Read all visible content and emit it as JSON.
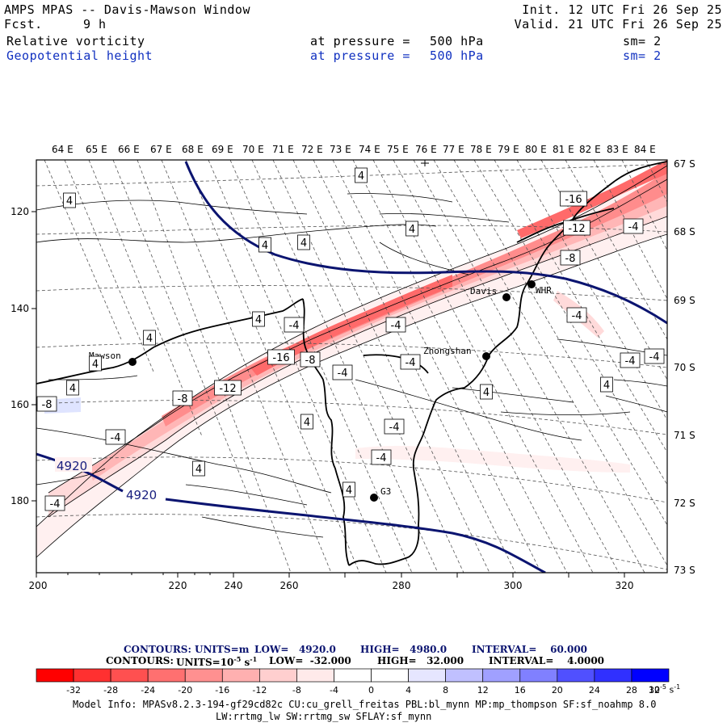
{
  "header": {
    "model_line": "AMPS MPAS -- Davis-Mawson Window",
    "forecast_label": "Fcst.",
    "forecast_value": "9 h",
    "init_line": "Init. 12 UTC Fri 26 Sep 25",
    "valid_line": "Valid. 21 UTC Fri 26 Sep 25",
    "fields": [
      {
        "name": "Relative vorticity",
        "level_text": "at pressure =",
        "level_value": "500 hPa",
        "smooth": "sm= 2",
        "color": "#000000"
      },
      {
        "name": "Geopotential height",
        "level_text": "at pressure =",
        "level_value": "500 hPa",
        "smooth": "sm= 2",
        "color": "#1030c0"
      }
    ]
  },
  "map": {
    "top_lon_labels": [
      "64 E",
      "65 E",
      "66 E",
      "67 E",
      "68 E",
      "69 E",
      "70 E",
      "71 E",
      "72 E",
      "73 E",
      "74 E",
      "75 E",
      "76 E",
      "77 E",
      "78 E",
      "79 E",
      "80 E",
      "81 E",
      "82 E",
      "83 E",
      "84 E"
    ],
    "right_lat_labels": [
      "67 S",
      "68 S",
      "69 S",
      "70 S",
      "71 S",
      "72 S",
      "73 S"
    ],
    "x_ticks": [
      "200",
      "220",
      "240",
      "260",
      "280",
      "300",
      "320"
    ],
    "y_ticks": [
      "120",
      "140",
      "160",
      "180"
    ],
    "stations": [
      "Mawson",
      "Davis",
      "WHR",
      "Zhongshan",
      "G3"
    ],
    "vorticity_labels": [
      "4",
      "4",
      "4",
      "4",
      "4",
      "4",
      "4",
      "4",
      "4",
      "4",
      "4",
      "4",
      "4",
      "4",
      "-4",
      "-4",
      "-4",
      "-4",
      "-4",
      "-4",
      "-4",
      "-4",
      "-4",
      "-4",
      "-4",
      "-4",
      "-8",
      "-8",
      "-8",
      "-8",
      "-8",
      "-12",
      "-12",
      "-16",
      "-16"
    ],
    "height_labels": [
      "4920",
      "4920"
    ]
  },
  "legend": {
    "contour1": {
      "label": "CONTOURS:",
      "units": "UNITS=m",
      "low": "LOW=   4920.0",
      "high": "HIGH=   4980.0",
      "interval": "INTERVAL=    60.000"
    },
    "contour2": {
      "label": "CONTOURS:",
      "units": "UNITS=10",
      "units_exp": "-5",
      "units_tail": "s",
      "units_tail_exp": "-1",
      "low": "LOW=  -32.000",
      "high": "HIGH=   32.000",
      "interval": "INTERVAL=    4.0000"
    },
    "colorbar_ticks": [
      "-32",
      "-28",
      "-24",
      "-20",
      "-16",
      "-12",
      "-8",
      "-4",
      "0",
      "4",
      "8",
      "12",
      "16",
      "20",
      "24",
      "28",
      "32"
    ],
    "colorbar_units": "10",
    "colorbar_units_exp": "-5",
    "colorbar_units_tail": "s",
    "colorbar_units_tail_exp": "-1",
    "colorbar_colors": [
      "#ff0000",
      "#ff3030",
      "#ff5050",
      "#ff7070",
      "#ff9090",
      "#ffb0b0",
      "#ffcfcf",
      "#ffeaea",
      "#ffffff",
      "#ffffff",
      "#e6e6ff",
      "#c0c0ff",
      "#a0a0ff",
      "#8080ff",
      "#5050ff",
      "#3030ff",
      "#0000ff"
    ]
  },
  "footer": {
    "line1": "Model Info: MPASv8.2.3-194-gf29cd82c CU:cu_grell_freitas PBL:bl_mynn MP:mp_thompson SF:sf_noahmp 8.0",
    "line2": "LW:rrtmg_lw SW:rrtmg_sw SFLAY:sf_mynn"
  }
}
